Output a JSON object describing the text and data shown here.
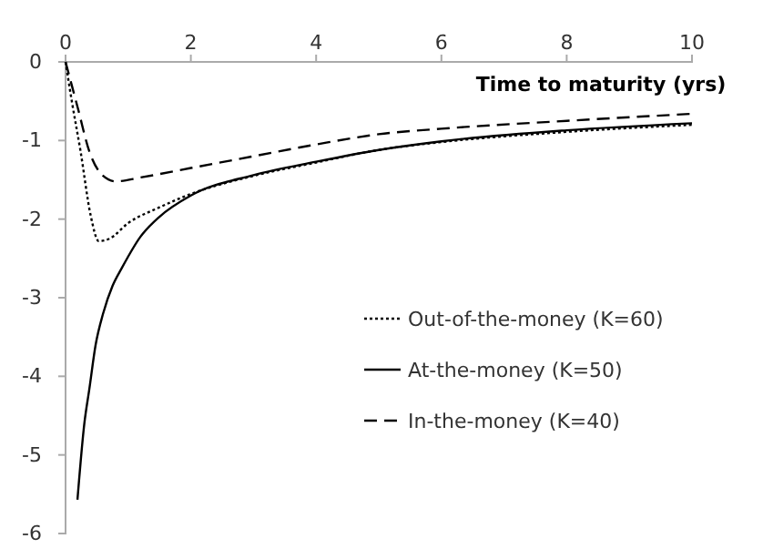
{
  "chart_data": {
    "type": "line",
    "xlabel": "Time to maturity (yrs)",
    "xlim": [
      0,
      10
    ],
    "ylim": [
      -6,
      0
    ],
    "xticks": [
      0,
      2,
      4,
      6,
      8,
      10
    ],
    "yticks": [
      0,
      -1,
      -2,
      -3,
      -4,
      -5,
      -6
    ],
    "grid": false,
    "legend": "right",
    "marker": "none",
    "series": [
      {
        "name": "Out-of-the-money (K=60)",
        "color": "#000000",
        "line_style": "dotted",
        "x": [
          0,
          0.1,
          0.24,
          0.4,
          0.53,
          0.7,
          1,
          1.5,
          2,
          3,
          4,
          5,
          6,
          8,
          10
        ],
        "values": [
          0,
          -0.5,
          -1.14,
          -1.95,
          -2.28,
          -2.25,
          -2.05,
          -1.85,
          -1.68,
          -1.45,
          -1.28,
          -1.12,
          -1.02,
          -0.89,
          -0.8
        ]
      },
      {
        "name": "At-the-money (K=50)",
        "color": "#000000",
        "line_style": "solid",
        "x": [
          0.19,
          0.3,
          0.38,
          0.48,
          0.6,
          0.75,
          0.9,
          1.2,
          1.5,
          2,
          3,
          4,
          5,
          6,
          8,
          10
        ],
        "values": [
          -5.57,
          -4.6,
          -4.16,
          -3.6,
          -3.2,
          -2.85,
          -2.62,
          -2.22,
          -1.97,
          -1.7,
          -1.44,
          -1.27,
          -1.12,
          -1.01,
          -0.87,
          -0.78
        ]
      },
      {
        "name": "In-the-money (K=40)",
        "color": "#000000",
        "line_style": "dashed",
        "x": [
          0,
          0.2,
          0.38,
          0.6,
          0.8,
          1.2,
          2,
          3,
          4,
          5,
          6,
          8,
          10
        ],
        "values": [
          0,
          -0.6,
          -1.14,
          -1.45,
          -1.52,
          -1.47,
          -1.35,
          -1.2,
          -1.05,
          -0.92,
          -0.85,
          -0.75,
          -0.66
        ]
      }
    ]
  }
}
